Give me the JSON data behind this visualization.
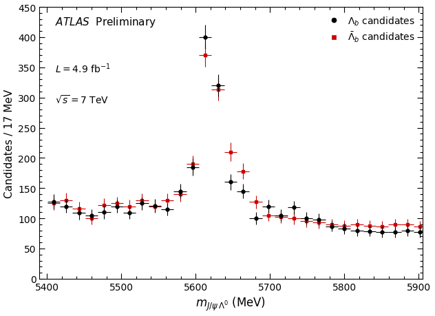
{
  "ylabel": "Candidates / 17 MeV",
  "xlim": [
    5390,
    5905
  ],
  "ylim": [
    0,
    450
  ],
  "xticks": [
    5400,
    5500,
    5600,
    5700,
    5800,
    5900
  ],
  "yticks": [
    0,
    50,
    100,
    150,
    200,
    250,
    300,
    350,
    400,
    450
  ],
  "black_x": [
    5409,
    5426,
    5443,
    5460,
    5477,
    5494,
    5511,
    5528,
    5545,
    5562,
    5579,
    5596,
    5613,
    5630,
    5647,
    5664,
    5681,
    5698,
    5715,
    5732,
    5749,
    5766,
    5783,
    5800,
    5817,
    5834,
    5851,
    5868,
    5885,
    5902
  ],
  "black_y": [
    128,
    120,
    109,
    105,
    110,
    120,
    109,
    125,
    121,
    115,
    145,
    185,
    400,
    320,
    160,
    145,
    100,
    120,
    105,
    118,
    100,
    98,
    87,
    83,
    80,
    79,
    77,
    77,
    80,
    77
  ],
  "black_yerr": [
    12,
    11,
    11,
    10,
    11,
    11,
    10,
    11,
    11,
    10,
    12,
    14,
    20,
    18,
    13,
    12,
    10,
    11,
    10,
    11,
    10,
    10,
    9,
    9,
    9,
    9,
    9,
    9,
    9,
    9
  ],
  "black_xerr": 8.5,
  "red_x": [
    5409,
    5426,
    5443,
    5460,
    5477,
    5494,
    5511,
    5528,
    5545,
    5562,
    5579,
    5596,
    5613,
    5630,
    5647,
    5664,
    5681,
    5698,
    5715,
    5732,
    5749,
    5766,
    5783,
    5800,
    5817,
    5834,
    5851,
    5868,
    5885,
    5902
  ],
  "red_y": [
    125,
    130,
    116,
    100,
    122,
    125,
    120,
    130,
    120,
    130,
    140,
    190,
    370,
    313,
    210,
    178,
    127,
    105,
    102,
    100,
    95,
    93,
    90,
    88,
    90,
    88,
    87,
    90,
    90,
    87
  ],
  "red_yerr": [
    11,
    12,
    11,
    10,
    11,
    11,
    11,
    11,
    11,
    11,
    12,
    14,
    19,
    18,
    15,
    13,
    11,
    10,
    10,
    10,
    10,
    10,
    9,
    9,
    9,
    9,
    9,
    9,
    9,
    9
  ],
  "red_xerr": 8.5,
  "black_color": "#000000",
  "red_color": "#cc0000",
  "background_color": "#ffffff"
}
